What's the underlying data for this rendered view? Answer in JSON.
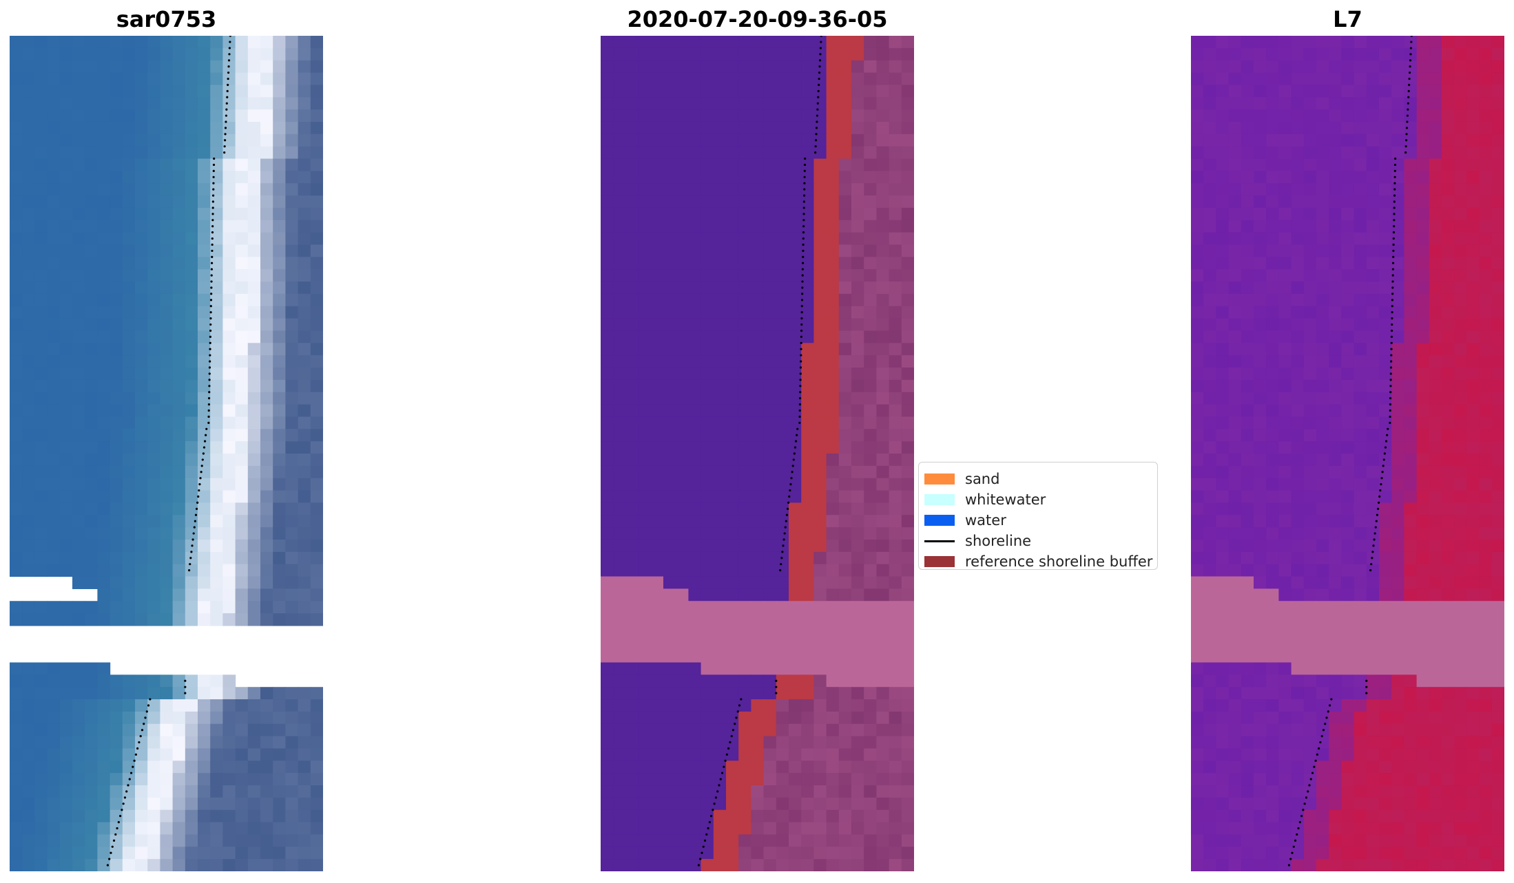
{
  "panels": [
    {
      "title": "sar0753"
    },
    {
      "title": "2020-07-20-09-36-05"
    },
    {
      "title": "L7"
    }
  ],
  "legend": {
    "items": [
      {
        "label": "sand",
        "color": "#ff8c3c"
      },
      {
        "label": "whitewater",
        "color": "#c8ffff"
      },
      {
        "label": "water",
        "color": "#0a5ff0"
      },
      {
        "label": "shoreline",
        "color": "#000000"
      },
      {
        "label": "reference shoreline buffer",
        "color": "#9b3235"
      }
    ]
  },
  "colors": {
    "water_rgb": "#2e6aa8",
    "sea_class": "#55239a",
    "sand_class": "#bb3a45",
    "buffer_overlay": "#bb6699",
    "land_class": "#7a2f6a",
    "ndwi_low": "#7a26a8",
    "ndwi_high": "#c4184f"
  }
}
